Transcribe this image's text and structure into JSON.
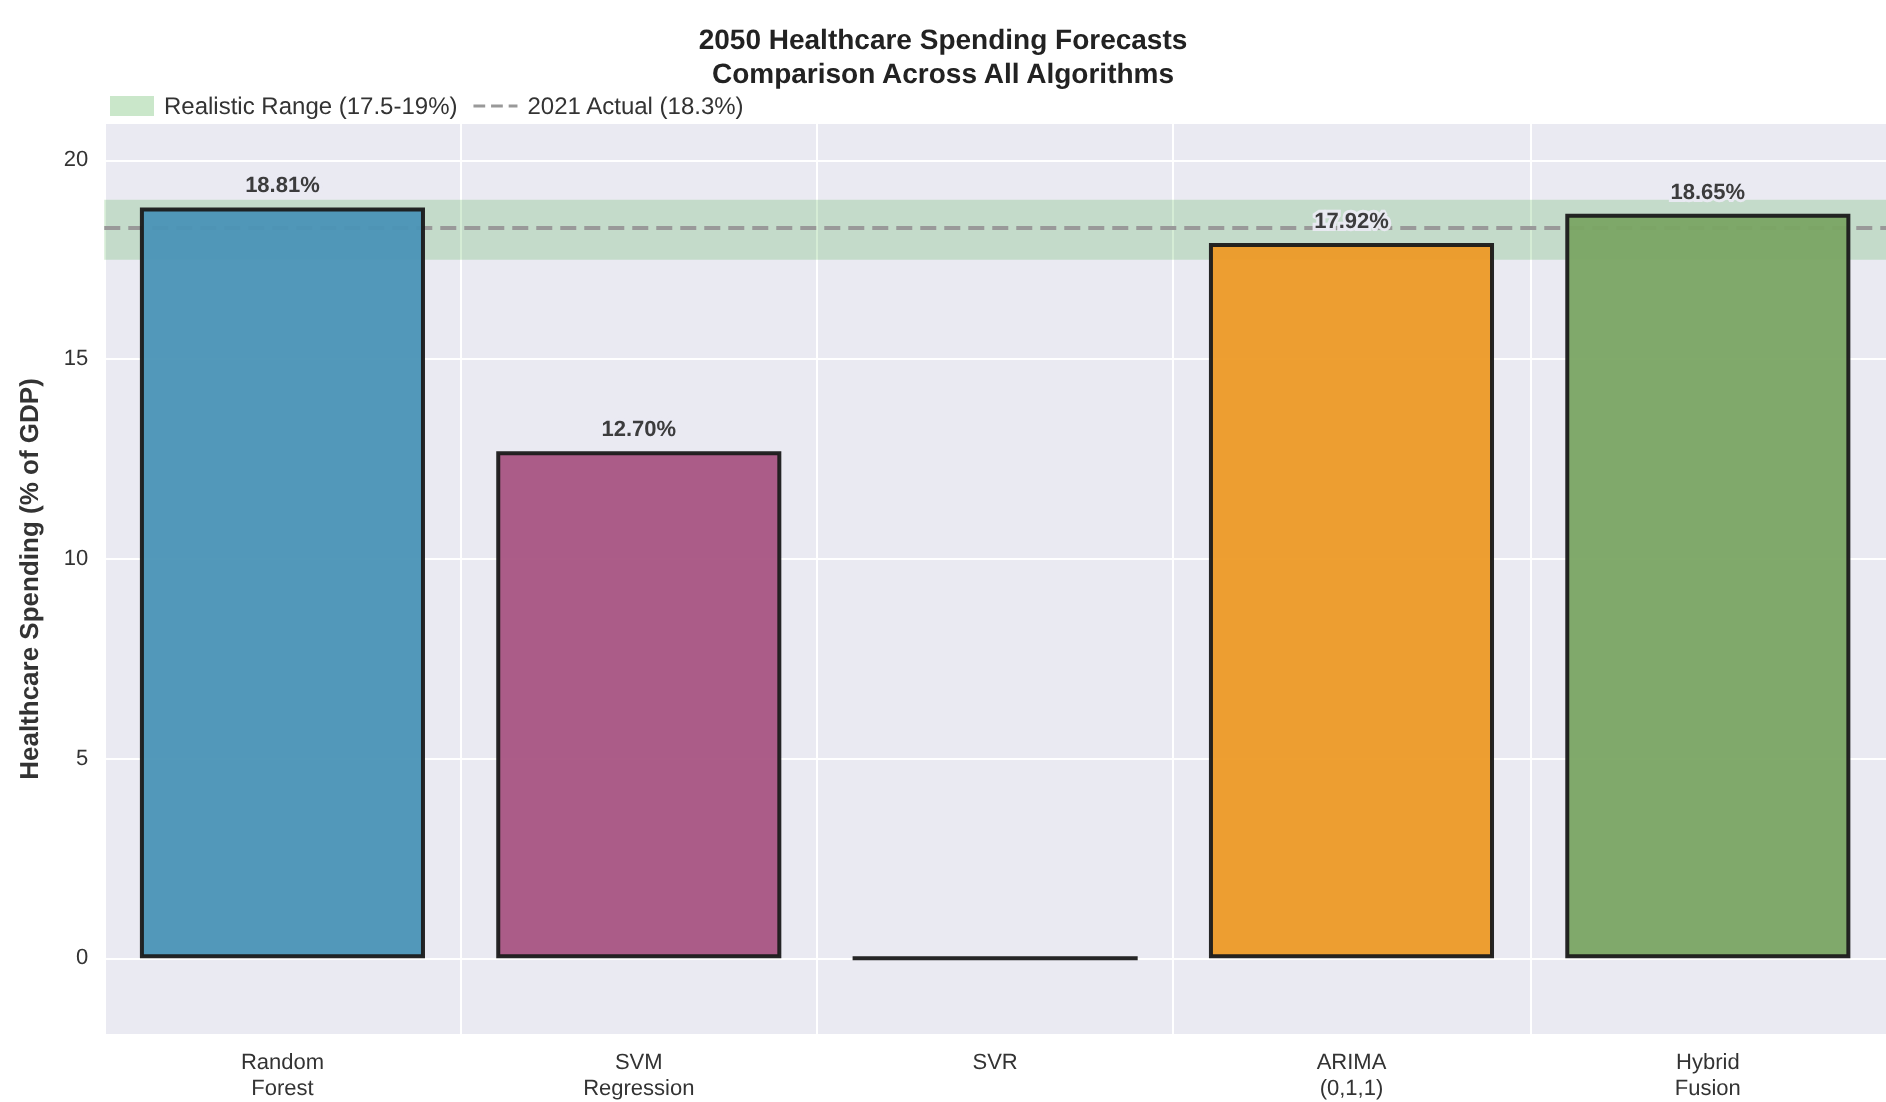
{
  "chart_data": {
    "type": "bar",
    "title": "2050 Healthcare Spending Forecasts\nComparison Across All Algorithms",
    "ylabel": "Healthcare Spending (% of GDP)",
    "categories": [
      "Random\nForest",
      "SVM\nRegression",
      "SVR",
      "ARIMA\n(0,1,1)",
      "Hybrid\nFusion"
    ],
    "values": [
      18.81,
      12.7,
      0,
      17.92,
      18.65
    ],
    "colors": [
      "#4a94b6",
      "#a85482",
      "#1a1a1a",
      "#ed9a26",
      "#7aa563"
    ],
    "value_labels": [
      "18.81%",
      "12.70%",
      null,
      "17.92%",
      "18.65%"
    ],
    "ylim": [
      -1.9,
      20.9
    ],
    "yticks": [
      0,
      5,
      10,
      15,
      20
    ],
    "bands": [
      {
        "axis": "y",
        "from": 17.5,
        "to": 19,
        "label": "Realistic Range (17.5-19%)",
        "color": "#2ca02c"
      }
    ],
    "ref_lines": [
      {
        "axis": "y",
        "value": 18.3,
        "label": "2021 Actual (18.3%)",
        "color": "#999999",
        "line_style": "dashed"
      }
    ],
    "grid": true,
    "legend": "top left"
  }
}
